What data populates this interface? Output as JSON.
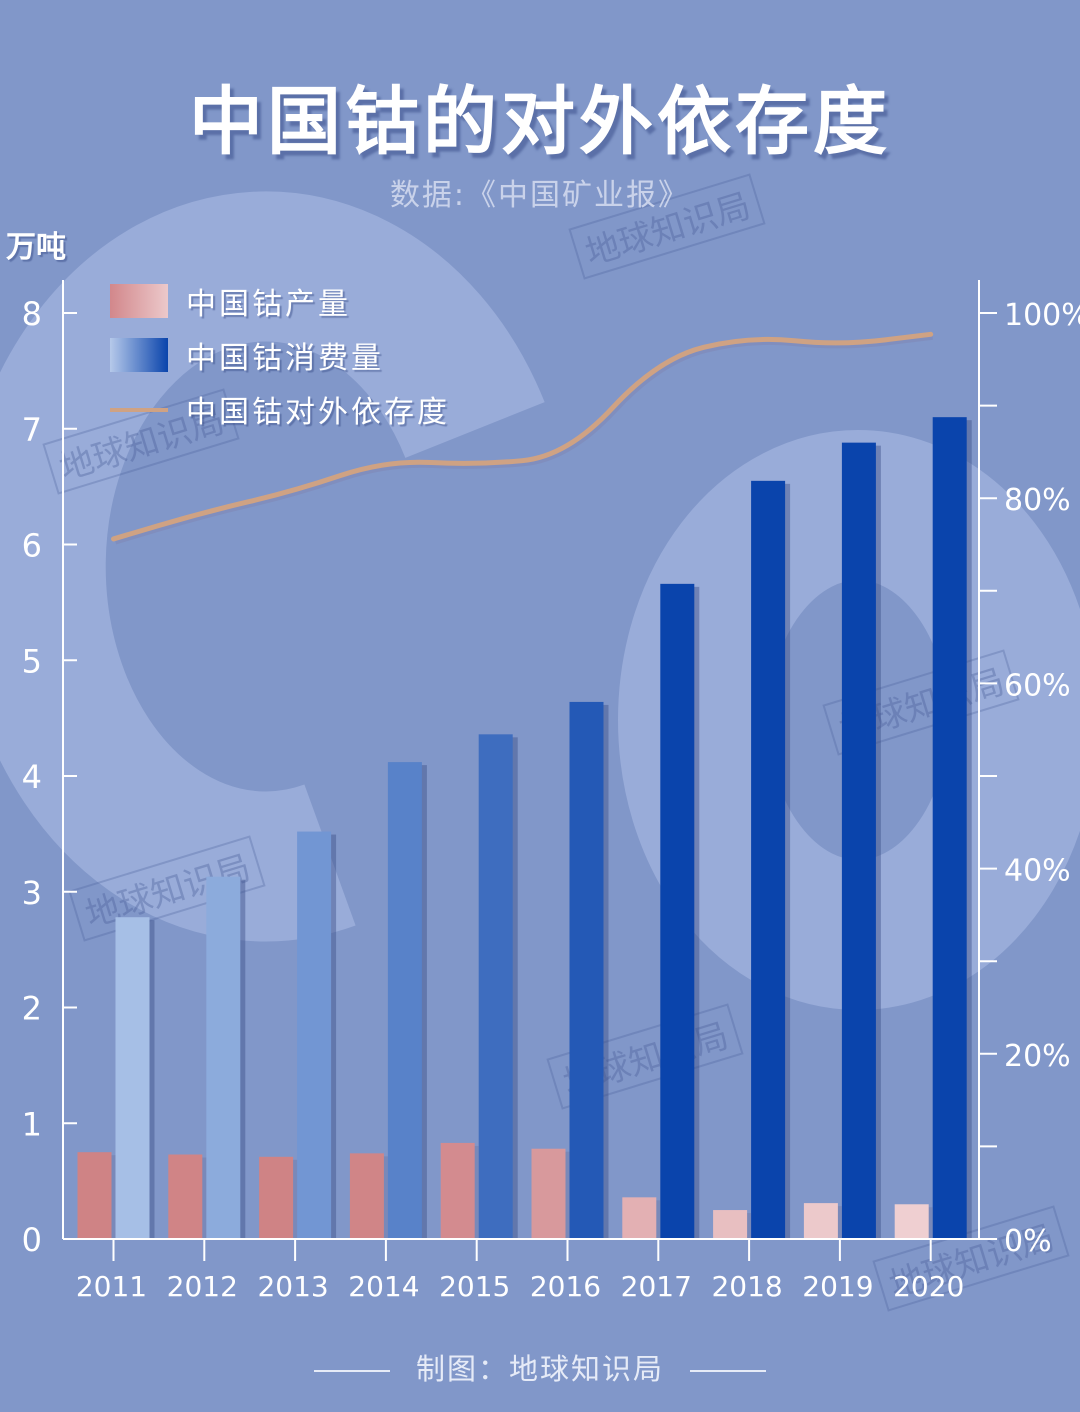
{
  "title": "中国钴的对外依存度",
  "subtitle": "数据:《中国矿业报》",
  "credit": "制图：地球知识局",
  "watermark_text": "地球知识局",
  "colors": {
    "background": "#8197c9",
    "production": "#d2878b",
    "consumption": "#0a44ac",
    "dependency_line": "#cfa283",
    "axis": "#ffffff"
  },
  "chart_data": {
    "type": "bar",
    "categories": [
      "2011",
      "2012",
      "2013",
      "2014",
      "2015",
      "2016",
      "2017",
      "2018",
      "2019",
      "2020"
    ],
    "series": [
      {
        "name": "中国钴产量",
        "type": "bar",
        "axis": "left",
        "values": [
          0.75,
          0.73,
          0.71,
          0.74,
          0.83,
          0.78,
          0.36,
          0.25,
          0.31,
          0.3
        ]
      },
      {
        "name": "中国钴消费量",
        "type": "bar",
        "axis": "left",
        "values": [
          2.78,
          3.13,
          3.52,
          4.12,
          4.36,
          4.64,
          5.66,
          6.55,
          6.88,
          7.1
        ]
      },
      {
        "name": "中国钴对外依存度",
        "type": "line",
        "axis": "right",
        "values": [
          75.6,
          78.5,
          80.8,
          84.1,
          83.6,
          84.5,
          95.1,
          97.5,
          96.5,
          97.7
        ]
      }
    ],
    "ylabel": "万吨",
    "ylim": [
      0,
      8
    ],
    "y_ticks": [
      "0",
      "1",
      "2",
      "3",
      "4",
      "5",
      "6",
      "7",
      "8"
    ],
    "y2lim": [
      0,
      100
    ],
    "y2_ticks": [
      "0%",
      "20%",
      "40%",
      "60%",
      "80%",
      "100%"
    ],
    "legend_position": "top-left",
    "grid": false
  }
}
